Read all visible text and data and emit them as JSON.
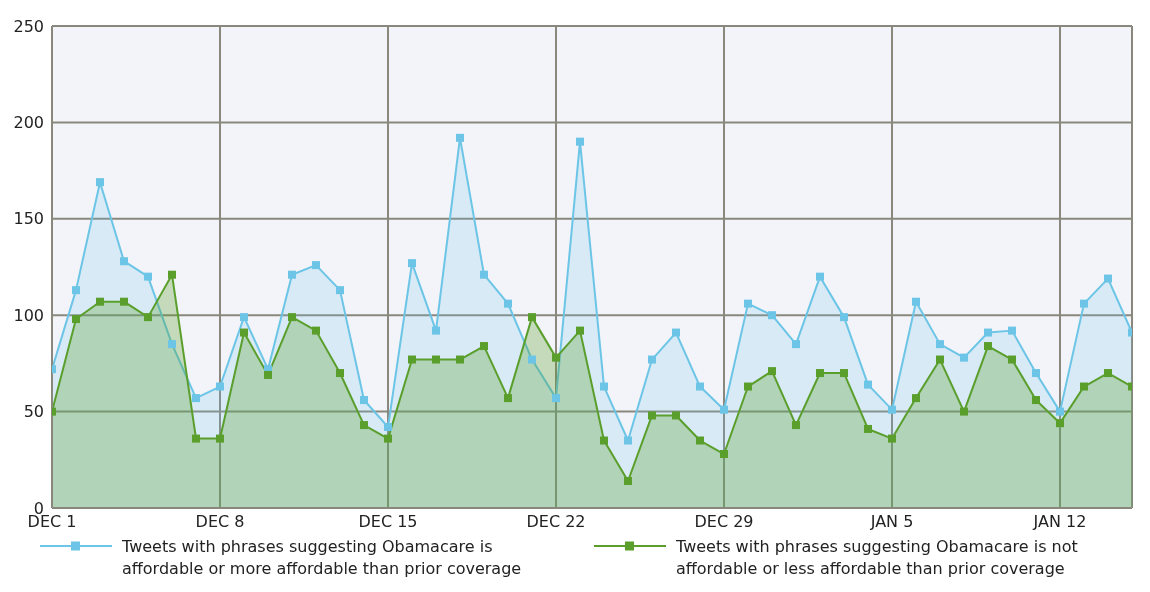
{
  "chart_data": {
    "type": "area",
    "categories": [
      "DEC 1",
      null,
      null,
      null,
      null,
      null,
      null,
      "DEC 8",
      null,
      null,
      null,
      null,
      null,
      null,
      "DEC 15",
      null,
      null,
      null,
      null,
      null,
      null,
      "DEC 22",
      null,
      null,
      null,
      null,
      null,
      null,
      "DEC 29",
      null,
      null,
      null,
      null,
      null,
      null,
      "JAN 5",
      null,
      null,
      null,
      null,
      null,
      null,
      "JAN 12",
      null,
      null,
      null
    ],
    "series": [
      {
        "name": "Tweets with phrases suggesting Obamacare is affordable or more affordable than prior coverage",
        "color": "#6cc5e6",
        "values": [
          72,
          113,
          169,
          128,
          120,
          85,
          57,
          63,
          99,
          72,
          121,
          126,
          113,
          56,
          42,
          127,
          92,
          192,
          121,
          106,
          77,
          57,
          190,
          63,
          35,
          77,
          91,
          63,
          51,
          106,
          100,
          85,
          120,
          99,
          64,
          51,
          107,
          85,
          78,
          91,
          92,
          70,
          50,
          106,
          119,
          91
        ]
      },
      {
        "name": "Tweets with phrases suggesting Obamacare is not affordable or less affordable than prior coverage",
        "color": "#5a9e2c",
        "values": [
          50,
          98,
          107,
          107,
          99,
          121,
          36,
          36,
          91,
          69,
          99,
          92,
          70,
          43,
          36,
          77,
          77,
          77,
          84,
          57,
          99,
          78,
          92,
          35,
          14,
          48,
          48,
          35,
          28,
          63,
          71,
          43,
          70,
          70,
          41,
          36,
          57,
          77,
          50,
          84,
          77,
          56,
          44,
          63,
          70,
          63
        ]
      }
    ],
    "ylim": [
      0,
      250
    ],
    "yticks": [
      0,
      50,
      100,
      150,
      200,
      250
    ],
    "grid": true,
    "legend": "bottom",
    "marker": "square",
    "line_style": "solid"
  }
}
